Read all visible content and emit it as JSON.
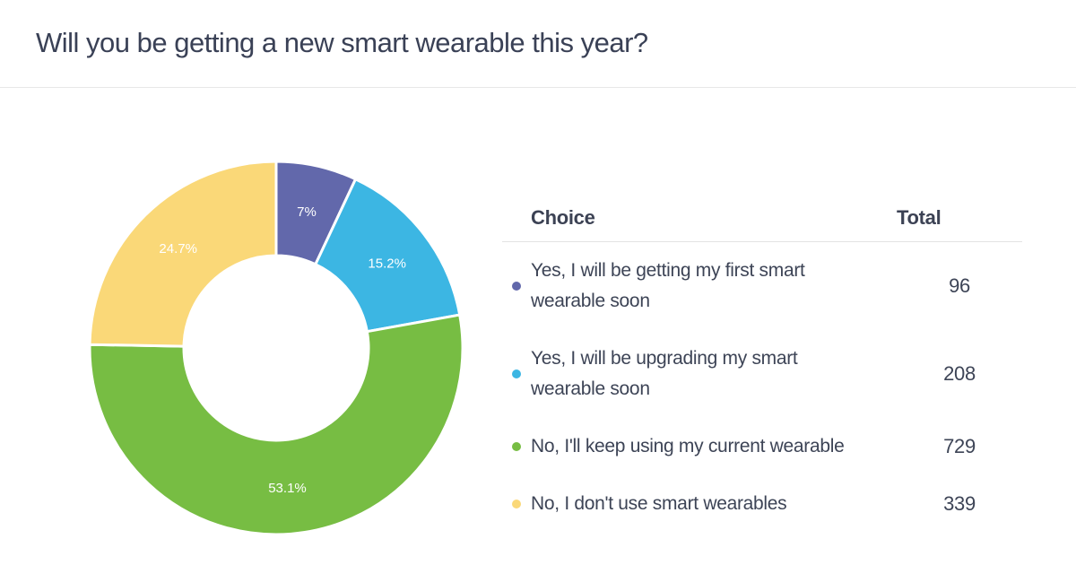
{
  "header": {
    "title": "Will you be getting a new smart wearable this year?"
  },
  "chart_data": {
    "type": "pie",
    "subtype": "donut",
    "title": "Will you be getting a new smart wearable this year?",
    "legend_position": "right",
    "start_angle_deg": 0,
    "direction": "clockwise",
    "columns": {
      "choice": "Choice",
      "total": "Total"
    },
    "slices": [
      {
        "label": "Yes, I will be getting my first smart wearable soon",
        "value": 96,
        "percent": 7.0,
        "percent_label": "7%",
        "color": "#6268ab"
      },
      {
        "label": "Yes, I will be upgrading my smart wearable soon",
        "value": 208,
        "percent": 15.2,
        "percent_label": "15.2%",
        "color": "#3cb6e3"
      },
      {
        "label": "No, I'll keep using my current wearable",
        "value": 729,
        "percent": 53.1,
        "percent_label": "53.1%",
        "color": "#77bd43"
      },
      {
        "label": "No, I don't use smart wearables",
        "value": 339,
        "percent": 24.7,
        "percent_label": "24.7%",
        "color": "#fad878"
      }
    ]
  }
}
